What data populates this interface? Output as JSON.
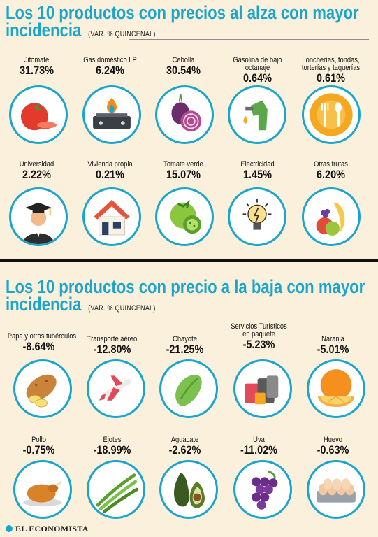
{
  "section_up": {
    "title_line1": "Los 10 productos con precios al alza con mayor",
    "title_line2": "incidencia",
    "subtitle": "(VAR. % QUINCENAL)",
    "items": [
      {
        "label": "Jitomate",
        "value": "31.73%"
      },
      {
        "label": "Gas doméstico LP",
        "value": "6.24%"
      },
      {
        "label": "Cebolla",
        "value": "30.54%"
      },
      {
        "label": "Gasolina de bajo",
        "label2": "octanaje",
        "value": "0.64%"
      },
      {
        "label": "Loncherías, fondas,",
        "label2": "torterías y taquerías",
        "value": "0.61%"
      },
      {
        "label": "Universidad",
        "value": "2.22%"
      },
      {
        "label": "Vivienda propia",
        "value": "0.21%"
      },
      {
        "label": "Tomate verde",
        "value": "15.07%"
      },
      {
        "label": "Electricidad",
        "value": "1.45%"
      },
      {
        "label": "Otras frutas",
        "value": "6.20%"
      }
    ]
  },
  "section_down": {
    "title_line1": "Los 10 productos con precio a la baja con mayor",
    "title_line2": "incidencia",
    "subtitle": "(VAR. % QUINCENAL)",
    "items": [
      {
        "label": "Papa y otros tubérculos",
        "value": "-8.64%"
      },
      {
        "label": "Transporte aéreo",
        "value": "-12.80%"
      },
      {
        "label": "Chayote",
        "value": "-21.25%"
      },
      {
        "label": "Servicios Turísticos",
        "label2": "en paquete",
        "value": "-5.23%"
      },
      {
        "label": "Naranja",
        "value": "-5.01%"
      },
      {
        "label": "Pollo",
        "value": "-0.75%"
      },
      {
        "label": "Ejotes",
        "value": "-18.99%"
      },
      {
        "label": "Aguacate",
        "value": "-2.62%"
      },
      {
        "label": "Uva",
        "value": "-11.02%"
      },
      {
        "label": "Huevo",
        "value": "-0.63%"
      }
    ]
  },
  "footer": {
    "brand": "EL ECONOMISTA"
  },
  "colors": {
    "accent": "#1aa6cc",
    "background": "#fbf0dc"
  }
}
